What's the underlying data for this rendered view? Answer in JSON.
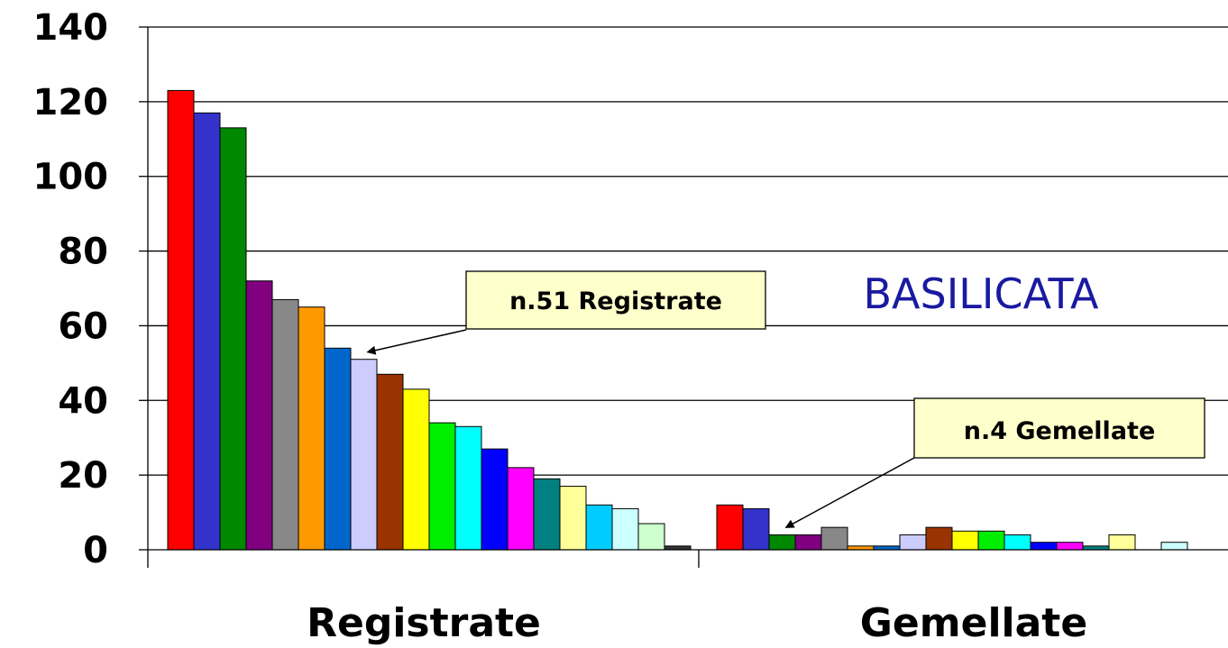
{
  "chart_data": {
    "type": "bar",
    "title": "BASILICATA",
    "categories": [
      "Registrate",
      "Gemellate"
    ],
    "ylim": [
      0,
      140
    ],
    "yticks": [
      "0",
      "20",
      "40",
      "60",
      "80",
      "100",
      "120",
      "140"
    ],
    "grid": true,
    "groups": [
      {
        "name": "Registrate",
        "values": [
          123,
          117,
          113,
          72,
          67,
          65,
          54,
          51,
          47,
          43,
          34,
          33,
          27,
          22,
          19,
          17,
          12,
          11,
          7,
          1
        ],
        "colors": [
          "#ff0000",
          "#3333cc",
          "#008800",
          "#800080",
          "#888888",
          "#ff9900",
          "#0066cc",
          "#ccccff",
          "#993300",
          "#ffff00",
          "#00ee00",
          "#00ffff",
          "#0000ff",
          "#ff00ff",
          "#008080",
          "#ffff99",
          "#00ccff",
          "#ccffff",
          "#ccffcc",
          "#333333"
        ]
      },
      {
        "name": "Gemellate",
        "values": [
          12,
          11,
          4,
          4,
          6,
          1,
          1,
          4,
          6,
          5,
          5,
          4,
          2,
          2,
          1,
          4,
          0,
          2
        ],
        "colors": [
          "#ff0000",
          "#3333cc",
          "#008800",
          "#800080",
          "#888888",
          "#ff9900",
          "#0066cc",
          "#ccccff",
          "#993300",
          "#ffff00",
          "#00ee00",
          "#00ffff",
          "#0000ff",
          "#ff00ff",
          "#008080",
          "#ffff99",
          "#00ccff",
          "#ccffff"
        ]
      }
    ],
    "annotations": [
      {
        "text": "n.51 Registrate",
        "points_to": {
          "group": "Registrate",
          "value": 51
        }
      },
      {
        "text": "n.4 Gemellate",
        "points_to": {
          "group": "Gemellate",
          "value": 4
        }
      }
    ]
  }
}
